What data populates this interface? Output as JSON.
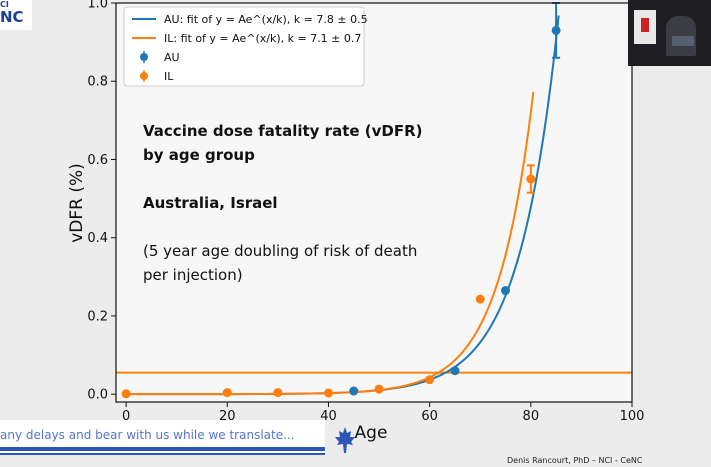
{
  "chart_data": {
    "type": "scatter",
    "xlabel": "Age",
    "ylabel": "vDFR (%)",
    "xlim": [
      -2,
      100
    ],
    "ylim": [
      -0.02,
      1.0
    ],
    "xticks": [
      0,
      20,
      40,
      60,
      80,
      100
    ],
    "yticks": [
      0.0,
      0.2,
      0.4,
      0.6,
      0.8,
      1.0
    ],
    "grid": false,
    "legend_position": "top-left",
    "annotation_lines": [
      "Vaccine dose fatality rate (vDFR)",
      "by age group",
      "",
      "Australia, Israel",
      "",
      "(5 year age doubling of risk of death",
      "per injection)"
    ],
    "series": [
      {
        "name": "AU",
        "color": "#1f77b4",
        "x": [
          45,
          65,
          75,
          85
        ],
        "y": [
          0.008,
          0.06,
          0.265,
          0.93
        ],
        "err": [
          0,
          0,
          0,
          0.07
        ]
      },
      {
        "name": "IL",
        "color": "#ff7f0e",
        "x": [
          0,
          20,
          30,
          40,
          50,
          60,
          70,
          80
        ],
        "y": [
          0.001,
          0.004,
          0.004,
          0.003,
          0.013,
          0.037,
          0.243,
          0.55
        ],
        "err": [
          0,
          0,
          0,
          0,
          0,
          0,
          0,
          0.035
        ]
      }
    ],
    "fits": [
      {
        "name": "AU: fit of y = Ae^(x/k), k = 7.8 ± 0.5",
        "color": "#1f77b4",
        "A": 1.68e-05,
        "k": 7.8,
        "x_range": [
          0,
          85.5
        ]
      },
      {
        "name": "IL: fit of y = Ae^(x/k), k = 7.1 ± 0.7",
        "color": "#ff7f0e",
        "A": 9.2e-06,
        "k": 7.1,
        "x_range": [
          0,
          80.5
        ]
      }
    ],
    "hline": {
      "y": 0.055,
      "color": "#ff7f0e"
    }
  },
  "overlay": {
    "logo_text": "NC",
    "video_sign": "",
    "ticker": "any delays and bear with us while we translate...",
    "credit": "Denis Rancourt, PhD  –  NCI - CeNC"
  }
}
